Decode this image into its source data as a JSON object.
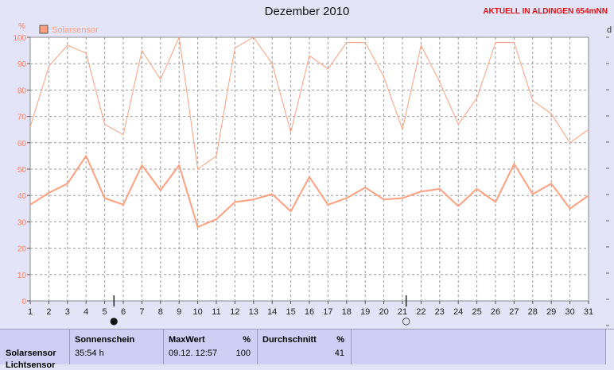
{
  "header": {
    "title": "Dezember 2010",
    "station": "AKTUELL IN ALDINGEN 654mNN"
  },
  "chart_data": {
    "type": "line",
    "title": "Dezember 2010",
    "ylabel": "%",
    "ylim": [
      0,
      100
    ],
    "yticks": [
      0,
      10,
      20,
      30,
      40,
      50,
      60,
      70,
      80,
      90,
      100
    ],
    "x": [
      1,
      2,
      3,
      4,
      5,
      6,
      7,
      8,
      9,
      10,
      11,
      12,
      13,
      14,
      15,
      16,
      17,
      18,
      19,
      20,
      21,
      22,
      23,
      24,
      25,
      26,
      27,
      28,
      29,
      30,
      31
    ],
    "xlim": [
      1,
      31
    ],
    "grid": true,
    "legend": "top-left",
    "right_axis_label": "d",
    "moon_phases": [
      {
        "day": 5.5,
        "phase": "full",
        "label": "●"
      },
      {
        "day": 21.2,
        "phase": "new",
        "label": "○"
      }
    ],
    "series": [
      {
        "name": "Solarsensor",
        "role": "max",
        "color": "#ff9f7e",
        "values": [
          66,
          89,
          97,
          94,
          67,
          63,
          95,
          84,
          100,
          50,
          55,
          96,
          100,
          90,
          64,
          93,
          88,
          98,
          98,
          85,
          65,
          97,
          83,
          67,
          77,
          98,
          98,
          76,
          71,
          60,
          65
        ]
      },
      {
        "role": "mean",
        "color": "#ff9f7e",
        "values": [
          36.5,
          41,
          44.5,
          55,
          39,
          36.5,
          51.5,
          42,
          51.5,
          28,
          31,
          37.5,
          38.5,
          40.5,
          34,
          47,
          36.5,
          39,
          43,
          38.5,
          39,
          41.5,
          42.5,
          36,
          42.5,
          37.5,
          52,
          40.5,
          44.5,
          35,
          40
        ]
      }
    ]
  },
  "footer": {
    "row_label": "Solarsensor",
    "row_label_cut": "Lichtsensor",
    "sonnenschein": {
      "header": "Sonnenschein",
      "value": "35:54 h"
    },
    "maxwert": {
      "header": "MaxWert",
      "unit": "%",
      "date": "09.12.  12:57",
      "value": "100"
    },
    "durchschnitt": {
      "header": "Durchschnitt",
      "unit": "%",
      "value": "41"
    }
  }
}
